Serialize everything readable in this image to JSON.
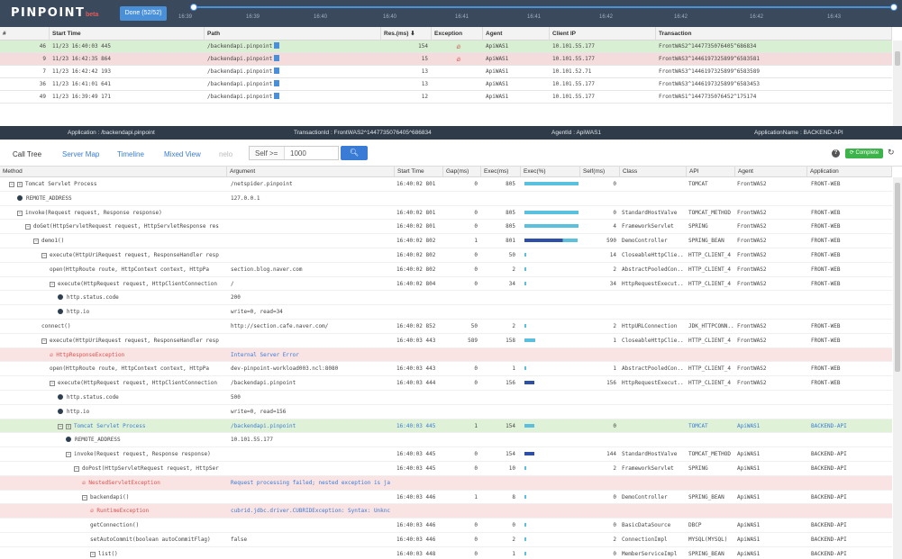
{
  "header": {
    "logo": "PINPOINT",
    "beta": "beta",
    "done_label": "Done (52/52)",
    "timeline_ticks": [
      "16:39",
      "16:39",
      "16:40",
      "16:40",
      "16:41",
      "16:41",
      "16:42",
      "16:42",
      "16:42",
      "16:43"
    ]
  },
  "tx_columns": [
    "#",
    "Start Time",
    "Path",
    "Res.(ms) ⬇",
    "Exception",
    "Agent",
    "Client IP",
    "Transaction"
  ],
  "tx_rows": [
    {
      "num": "46",
      "start": "11/23 16:40:03 445",
      "path": "/backendapi.pinpoint",
      "res": "154",
      "exception": true,
      "agent": "ApiWAS1",
      "ip": "10.101.55.177",
      "tx": "FrontWAS2^1447735076405^686834",
      "style": "green"
    },
    {
      "num": "9",
      "start": "11/23 16:42:35 864",
      "path": "/backendapi.pinpoint",
      "res": "15",
      "exception": true,
      "agent": "ApiWAS1",
      "ip": "10.101.55.177",
      "tx": "FrontWAS3^1446197325899^6583581",
      "style": "red"
    },
    {
      "num": "7",
      "start": "11/23 16:42:42 193",
      "path": "/backendapi.pinpoint",
      "res": "13",
      "exception": false,
      "agent": "ApiWAS1",
      "ip": "10.101.52.71",
      "tx": "FrontWAS3^1446197325899^6583589",
      "style": ""
    },
    {
      "num": "36",
      "start": "11/23 16:41:01 641",
      "path": "/backendapi.pinpoint",
      "res": "13",
      "exception": false,
      "agent": "ApiWAS1",
      "ip": "10.101.55.177",
      "tx": "FrontWAS3^1446197325899^6583453",
      "style": ""
    },
    {
      "num": "49",
      "start": "11/23 16:39:49 171",
      "path": "/backendapi.pinpoint",
      "res": "12",
      "exception": false,
      "agent": "ApiWAS1",
      "ip": "10.101.55.177",
      "tx": "FrontWAS1^1447735076452^175174",
      "style": ""
    }
  ],
  "infobar": {
    "application": "Application : /backendapi.pinpoint",
    "transaction": "TransactionId : FrontWAS2^1447735076405^686834",
    "agent": "AgentId : ApiWAS1",
    "appname": "ApplicationName : BACKEND-API"
  },
  "tabs": [
    "Call Tree",
    "Server Map",
    "Timeline",
    "Mixed View",
    "nelo"
  ],
  "self_filter": {
    "label": "Self >=",
    "value": "1000"
  },
  "complete_label": "Complete",
  "ct_columns": [
    "Method",
    "Argument",
    "Start Time",
    "Gap(ms)",
    "Exec(ms)",
    "Exec(%)",
    "Self(ms)",
    "Class",
    "API",
    "Agent",
    "Application"
  ],
  "ct_rows": [
    {
      "indent": 0,
      "icon": "tog",
      "method": "Tomcat Servlet Process",
      "arg": "/netspider.pinpoint",
      "start": "16:40:02 801",
      "gap": "0",
      "exec": "805",
      "pct": 100,
      "self": "0",
      "cls": "",
      "api": "TOMCAT",
      "agent": "FrontWAS2",
      "app": "FRONT-WEB",
      "style": ""
    },
    {
      "indent": 1,
      "icon": "dot",
      "method": "REMOTE_ADDRESS",
      "arg": "127.0.0.1",
      "start": "",
      "gap": "",
      "exec": "",
      "pct": 0,
      "self": "",
      "cls": "",
      "api": "",
      "agent": "",
      "app": "",
      "style": ""
    },
    {
      "indent": 1,
      "icon": "tog",
      "method": "invoke(Request request, Response response)",
      "arg": "",
      "start": "16:40:02 801",
      "gap": "0",
      "exec": "805",
      "pct": 100,
      "self": "0",
      "cls": "StandardHostValve",
      "api": "TOMCAT_METHOD",
      "agent": "FrontWAS2",
      "app": "FRONT-WEB",
      "style": ""
    },
    {
      "indent": 2,
      "icon": "tog",
      "method": "doGet(HttpServletRequest request, HttpServletResponse res",
      "arg": "",
      "start": "16:40:02 801",
      "gap": "0",
      "exec": "805",
      "pct": 100,
      "self": "4",
      "cls": "FrameworkServlet",
      "api": "SPRING",
      "agent": "FrontWAS2",
      "app": "FRONT-WEB",
      "style": ""
    },
    {
      "indent": 3,
      "icon": "tog",
      "method": "demo1()",
      "arg": "",
      "start": "16:40:02 802",
      "gap": "1",
      "exec": "801",
      "pct": 99,
      "self": "590",
      "cls": "DemoController",
      "api": "SPRING_BEAN",
      "agent": "FrontWAS2",
      "app": "FRONT-WEB",
      "style": "",
      "dark": true
    },
    {
      "indent": 4,
      "icon": "tog",
      "method": "execute(HttpUriRequest request, ResponseHandler resp",
      "arg": "",
      "start": "16:40:02 802",
      "gap": "0",
      "exec": "50",
      "pct": 2,
      "self": "14",
      "cls": "CloseableHttpClie..",
      "api": "HTTP_CLIENT_4",
      "agent": "FrontWAS2",
      "app": "FRONT-WEB",
      "style": ""
    },
    {
      "indent": 5,
      "icon": "",
      "method": "open(HttpRoute route, HttpContext context, HttpPa",
      "arg": "section.blog.naver.com",
      "start": "16:40:02 802",
      "gap": "0",
      "exec": "2",
      "pct": 1,
      "self": "2",
      "cls": "AbstractPooledCon..",
      "api": "HTTP_CLIENT_4",
      "agent": "FrontWAS2",
      "app": "FRONT-WEB",
      "style": ""
    },
    {
      "indent": 5,
      "icon": "tog",
      "method": "execute(HttpRequest request, HttpClientConnection",
      "arg": "/",
      "start": "16:40:02 804",
      "gap": "0",
      "exec": "34",
      "pct": 2,
      "self": "34",
      "cls": "HttpRequestExecut..",
      "api": "HTTP_CLIENT_4",
      "agent": "FrontWAS2",
      "app": "FRONT-WEB",
      "style": ""
    },
    {
      "indent": 6,
      "icon": "dot",
      "method": "http.status.code",
      "arg": "200",
      "start": "",
      "gap": "",
      "exec": "",
      "pct": 0,
      "self": "",
      "cls": "",
      "api": "",
      "agent": "",
      "app": "",
      "style": ""
    },
    {
      "indent": 6,
      "icon": "dot",
      "method": "http.io",
      "arg": "write=0, read=34",
      "start": "",
      "gap": "",
      "exec": "",
      "pct": 0,
      "self": "",
      "cls": "",
      "api": "",
      "agent": "",
      "app": "",
      "style": ""
    },
    {
      "indent": 4,
      "icon": "",
      "method": "connect()",
      "arg": "http://section.cafe.naver.com/",
      "start": "16:40:02 852",
      "gap": "50",
      "exec": "2",
      "pct": 1,
      "self": "2",
      "cls": "HttpURLConnection",
      "api": "JDK_HTTPCONN..",
      "agent": "FrontWAS2",
      "app": "FRONT-WEB",
      "style": ""
    },
    {
      "indent": 4,
      "icon": "tog",
      "method": "execute(HttpUriRequest request, ResponseHandler resp",
      "arg": "",
      "start": "16:40:03 443",
      "gap": "589",
      "exec": "158",
      "pct": 20,
      "self": "1",
      "cls": "CloseableHttpClie..",
      "api": "HTTP_CLIENT_4",
      "agent": "FrontWAS2",
      "app": "FRONT-WEB",
      "style": ""
    },
    {
      "indent": 5,
      "icon": "fire",
      "method": "HttpResponseException",
      "arg": "Internal Server Error",
      "start": "",
      "gap": "",
      "exec": "",
      "pct": 0,
      "self": "",
      "cls": "",
      "api": "",
      "agent": "",
      "app": "",
      "style": "red"
    },
    {
      "indent": 5,
      "icon": "",
      "method": "open(HttpRoute route, HttpContext context, HttpPa",
      "arg": "dev-pinpoint-workload003.ncl:8080",
      "start": "16:40:03 443",
      "gap": "0",
      "exec": "1",
      "pct": 1,
      "self": "1",
      "cls": "AbstractPooledCon..",
      "api": "HTTP_CLIENT_4",
      "agent": "FrontWAS2",
      "app": "FRONT-WEB",
      "style": ""
    },
    {
      "indent": 5,
      "icon": "tog",
      "method": "execute(HttpRequest request, HttpClientConnection",
      "arg": "/backendapi.pinpoint",
      "start": "16:40:03 444",
      "gap": "0",
      "exec": "156",
      "pct": 19,
      "self": "156",
      "cls": "HttpRequestExecut..",
      "api": "HTTP_CLIENT_4",
      "agent": "FrontWAS2",
      "app": "FRONT-WEB",
      "style": "",
      "dark": true
    },
    {
      "indent": 6,
      "icon": "dot",
      "method": "http.status.code",
      "arg": "500",
      "start": "",
      "gap": "",
      "exec": "",
      "pct": 0,
      "self": "",
      "cls": "",
      "api": "",
      "agent": "",
      "app": "",
      "style": ""
    },
    {
      "indent": 6,
      "icon": "dot",
      "method": "http.io",
      "arg": "write=0, read=156",
      "start": "",
      "gap": "",
      "exec": "",
      "pct": 0,
      "self": "",
      "cls": "",
      "api": "",
      "agent": "",
      "app": "",
      "style": ""
    },
    {
      "indent": 6,
      "icon": "tog2",
      "method": "Tomcat Servlet Process",
      "arg": "/backendapi.pinpoint",
      "start": "16:40:03 445",
      "gap": "1",
      "exec": "154",
      "pct": 19,
      "self": "0",
      "cls": "",
      "api": "TOMCAT",
      "agent": "ApiWAS1",
      "app": "BACKEND-API",
      "style": "green"
    },
    {
      "indent": 7,
      "icon": "dot",
      "method": "REMOTE_ADDRESS",
      "arg": "10.101.55.177",
      "start": "",
      "gap": "",
      "exec": "",
      "pct": 0,
      "self": "",
      "cls": "",
      "api": "",
      "agent": "",
      "app": "",
      "style": ""
    },
    {
      "indent": 7,
      "icon": "tog",
      "method": "invoke(Request request, Response response)",
      "arg": "",
      "start": "16:40:03 445",
      "gap": "0",
      "exec": "154",
      "pct": 19,
      "self": "144",
      "cls": "StandardHostValve",
      "api": "TOMCAT_METHOD",
      "agent": "ApiWAS1",
      "app": "BACKEND-API",
      "style": "",
      "dark": true
    },
    {
      "indent": 8,
      "icon": "tog",
      "method": "doPost(HttpServletRequest request, HttpSer",
      "arg": "",
      "start": "16:40:03 445",
      "gap": "0",
      "exec": "10",
      "pct": 1,
      "self": "2",
      "cls": "FrameworkServlet",
      "api": "SPRING",
      "agent": "ApiWAS1",
      "app": "BACKEND-API",
      "style": ""
    },
    {
      "indent": 9,
      "icon": "fire",
      "method": "NestedServletException",
      "arg": "Request processing failed; nested exception is ja",
      "start": "",
      "gap": "",
      "exec": "",
      "pct": 0,
      "self": "",
      "cls": "",
      "api": "",
      "agent": "",
      "app": "",
      "style": "red"
    },
    {
      "indent": 9,
      "icon": "tog",
      "method": "backendapi()",
      "arg": "",
      "start": "16:40:03 446",
      "gap": "1",
      "exec": "8",
      "pct": 1,
      "self": "0",
      "cls": "DemoController",
      "api": "SPRING_BEAN",
      "agent": "ApiWAS1",
      "app": "BACKEND-API",
      "style": ""
    },
    {
      "indent": 10,
      "icon": "fire",
      "method": "RuntimeException",
      "arg": "cubrid.jdbc.driver.CUBRIDException: Syntax: Unknc",
      "start": "",
      "gap": "",
      "exec": "",
      "pct": 0,
      "self": "",
      "cls": "",
      "api": "",
      "agent": "",
      "app": "",
      "style": "red"
    },
    {
      "indent": 10,
      "icon": "",
      "method": "getConnection()",
      "arg": "",
      "start": "16:40:03 446",
      "gap": "0",
      "exec": "0",
      "pct": 0,
      "self": "0",
      "cls": "BasicDataSource",
      "api": "DBCP",
      "agent": "ApiWAS1",
      "app": "BACKEND-API",
      "style": ""
    },
    {
      "indent": 10,
      "icon": "",
      "method": "setAutoCommit(boolean autoCommitFlag)",
      "arg": "false",
      "start": "16:40:03 446",
      "gap": "0",
      "exec": "2",
      "pct": 0,
      "self": "2",
      "cls": "ConnectionImpl",
      "api": "MYSQL(MYSQL)",
      "agent": "ApiWAS1",
      "app": "BACKEND-API",
      "style": ""
    },
    {
      "indent": 10,
      "icon": "tog",
      "method": "list()",
      "arg": "",
      "start": "16:40:03 448",
      "gap": "0",
      "exec": "1",
      "pct": 0,
      "self": "0",
      "cls": "MemberServiceImpl",
      "api": "SPRING_BEAN",
      "agent": "ApiWAS1",
      "app": "BACKEND-API",
      "style": ""
    }
  ],
  "colors": {
    "header_bg": "#3a4a5c",
    "accent": "#3a7bd5",
    "bar": "#5bc0de",
    "bar_dark": "#2e4fa8",
    "green_row": "#dff2d8",
    "red_row": "#f9e3e3"
  }
}
